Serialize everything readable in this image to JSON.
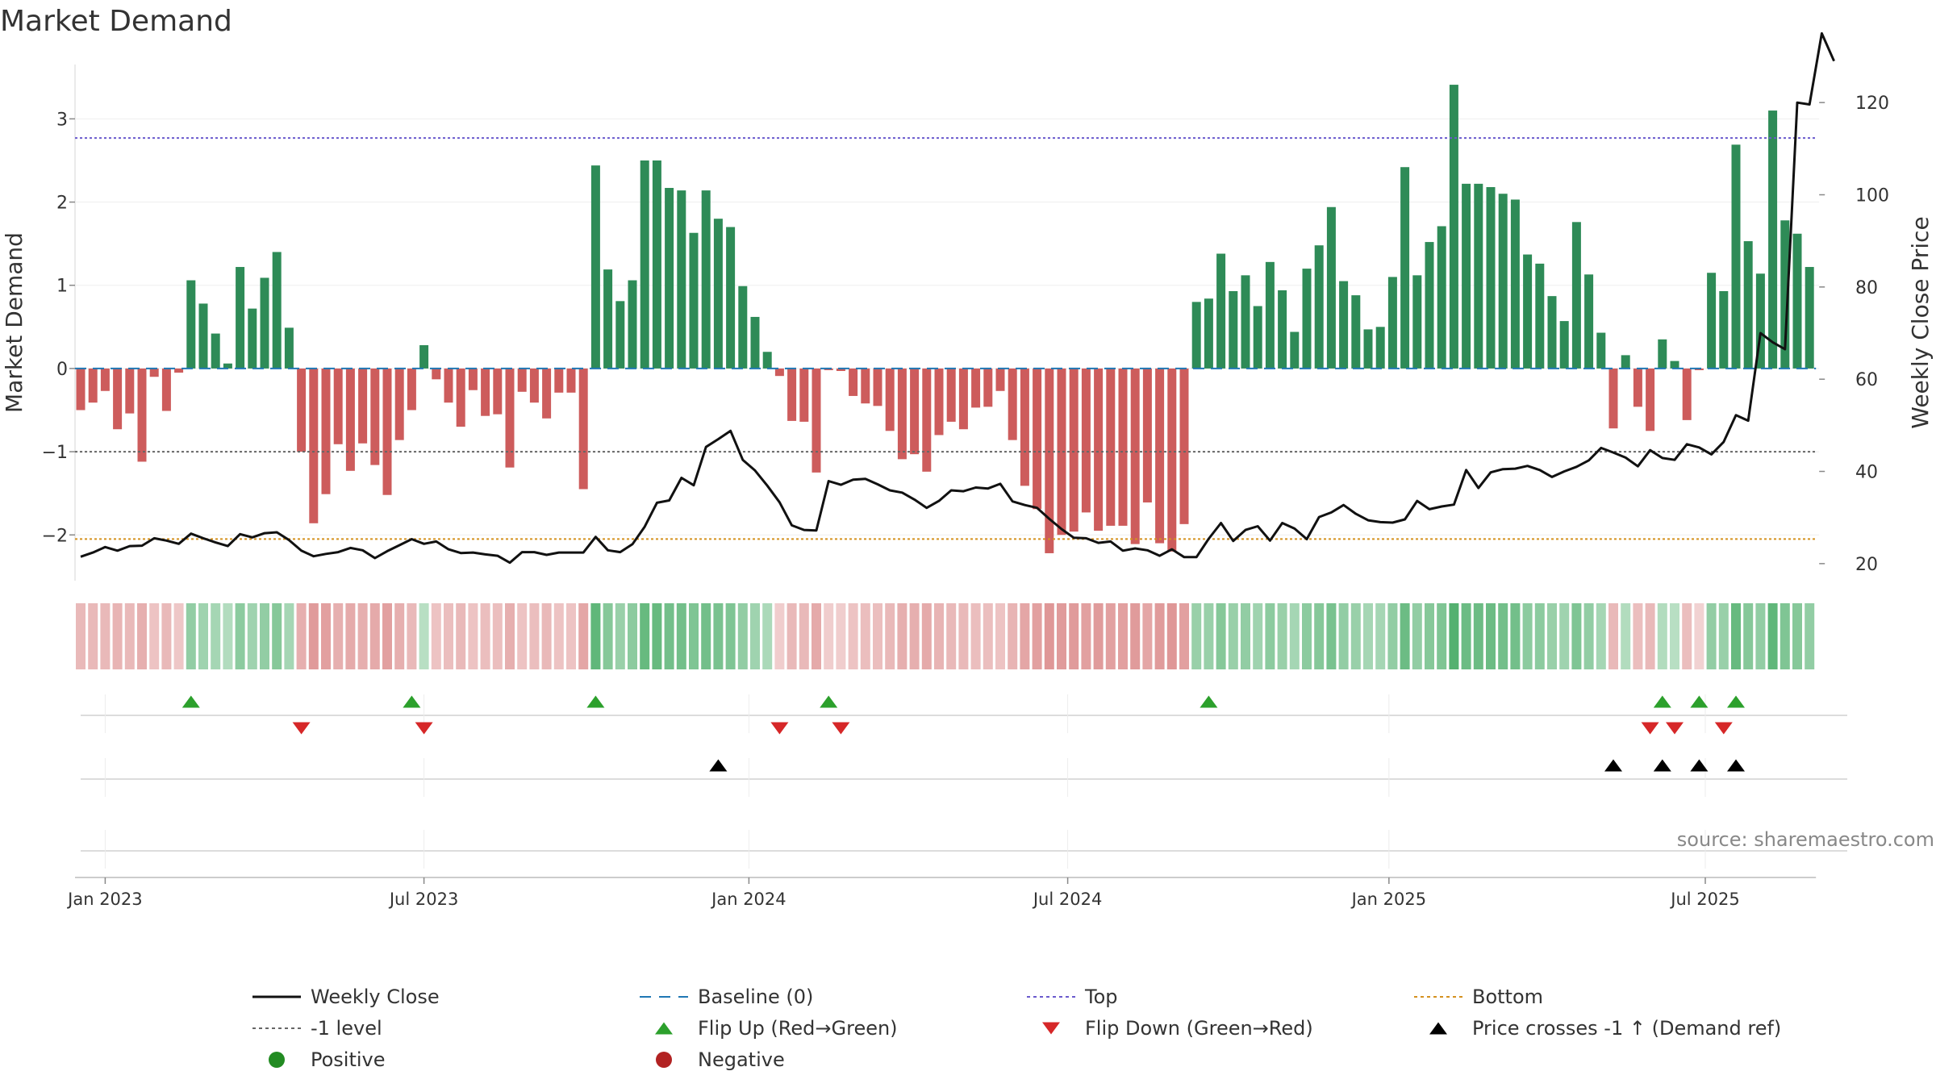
{
  "chart_data": {
    "type": "bar",
    "title": "Market Demand",
    "ylabel": "Market Demand",
    "y2label": "Weekly Close Price",
    "source": "source: sharemaestro.com",
    "ylim": [
      -2.55,
      3.75
    ],
    "y2lim": [
      16.3,
      130.0
    ],
    "yticks": [
      -2,
      -1,
      0,
      1,
      2,
      3
    ],
    "y2ticks": [
      20,
      40,
      60,
      80,
      100,
      120
    ],
    "x_ticks": [
      {
        "label": "Jan 2023",
        "week": 2
      },
      {
        "label": "Jul 2023",
        "week": 28
      },
      {
        "label": "Jan 2024",
        "week": 54.5
      },
      {
        "label": "Jul 2024",
        "week": 80.5
      },
      {
        "label": "Jan 2025",
        "week": 106.7
      },
      {
        "label": "Jul 2025",
        "week": 132.5
      }
    ],
    "levels": {
      "top": 2.77,
      "minus1": -1.0,
      "bottom": -2.05,
      "baseline": 0
    },
    "demand": [
      -0.5,
      -0.41,
      -0.27,
      -0.73,
      -0.54,
      -1.12,
      -0.1,
      -0.51,
      -0.05,
      1.06,
      0.78,
      0.42,
      0.06,
      1.22,
      0.72,
      1.09,
      1.4,
      0.49,
      -1.0,
      -1.86,
      -1.51,
      -0.91,
      -1.23,
      -0.9,
      -1.16,
      -1.52,
      -0.86,
      -0.5,
      0.28,
      -0.13,
      -0.41,
      -0.7,
      -0.26,
      -0.57,
      -0.55,
      -1.19,
      -0.28,
      -0.41,
      -0.6,
      -0.29,
      -0.29,
      -1.45,
      2.44,
      1.19,
      0.81,
      1.06,
      2.5,
      2.5,
      2.17,
      2.14,
      1.63,
      2.14,
      1.8,
      1.7,
      0.99,
      0.62,
      0.2,
      -0.09,
      -0.63,
      -0.64,
      -1.25,
      -0.02,
      -0.03,
      -0.33,
      -0.42,
      -0.45,
      -0.75,
      -1.09,
      -1.03,
      -1.24,
      -0.8,
      -0.64,
      -0.73,
      -0.47,
      -0.46,
      -0.27,
      -0.86,
      -1.41,
      -1.69,
      -2.22,
      -2.0,
      -1.96,
      -1.73,
      -1.95,
      -1.89,
      -1.89,
      -2.11,
      -1.61,
      -2.1,
      -2.2,
      -1.87,
      0.8,
      0.84,
      1.38,
      0.93,
      1.12,
      0.75,
      1.28,
      0.94,
      0.44,
      1.2,
      1.48,
      1.94,
      1.05,
      0.88,
      0.47,
      0.5,
      1.1,
      2.42,
      1.12,
      1.52,
      1.71,
      3.41,
      2.22,
      2.22,
      2.18,
      2.1,
      2.03,
      1.37,
      1.26,
      0.87,
      0.57,
      1.76,
      1.13,
      0.43,
      -0.72,
      0.16,
      -0.46,
      -0.75,
      0.35,
      0.09,
      -0.62,
      -0.02,
      1.15,
      0.93,
      2.69,
      1.53,
      1.14,
      3.1,
      1.78,
      1.62,
      1.22
    ],
    "close": [
      21.5,
      22.4,
      23.6,
      22.8,
      23.8,
      23.9,
      25.5,
      25.0,
      24.3,
      26.5,
      25.5,
      24.6,
      23.8,
      26.4,
      25.7,
      26.6,
      26.8,
      25.1,
      22.8,
      21.6,
      22.1,
      22.5,
      23.4,
      22.9,
      21.2,
      22.7,
      24.0,
      25.3,
      24.3,
      24.8,
      23.1,
      22.3,
      22.4,
      22.0,
      21.7,
      20.2,
      22.5,
      22.5,
      21.9,
      22.4,
      22.4,
      22.4,
      25.8,
      22.9,
      22.5,
      24.2,
      28.0,
      33.2,
      33.7,
      38.6,
      37.0,
      45.3,
      47.0,
      48.8,
      42.5,
      40.2,
      36.9,
      33.3,
      28.3,
      27.3,
      27.2,
      37.9,
      37.1,
      38.2,
      38.4,
      37.2,
      35.9,
      35.4,
      33.9,
      32.1,
      33.6,
      35.9,
      35.7,
      36.5,
      36.3,
      37.3,
      33.5,
      32.7,
      32.1,
      29.7,
      27.5,
      25.6,
      25.5,
      24.5,
      24.8,
      22.8,
      23.3,
      22.9,
      21.7,
      23.1,
      21.4,
      21.4,
      25.4,
      28.8,
      24.9,
      27.3,
      28.1,
      25.0,
      28.8,
      27.6,
      25.3,
      30.1,
      31.1,
      32.7,
      30.8,
      29.4,
      29.0,
      28.9,
      29.6,
      33.6,
      31.8,
      32.4,
      32.8,
      40.3,
      36.4,
      39.8,
      40.5,
      40.6,
      41.2,
      40.3,
      38.8,
      40.0,
      41.0,
      42.4,
      45.1,
      44.1,
      43.0,
      41.1,
      44.6,
      42.9,
      42.5,
      45.9,
      45.2,
      43.7,
      46.4,
      52.2,
      51.0,
      70.0,
      68.0,
      66.5,
      120.0,
      119.6,
      135.0,
      129.0
    ],
    "heat_intensity": [
      0.35,
      0.35,
      0.35,
      0.4,
      0.35,
      0.45,
      0.25,
      0.35,
      0.2,
      0.5,
      0.4,
      0.35,
      0.25,
      0.55,
      0.4,
      0.5,
      0.6,
      0.35,
      0.45,
      0.65,
      0.6,
      0.45,
      0.5,
      0.45,
      0.5,
      0.6,
      0.45,
      0.35,
      0.2,
      0.25,
      0.3,
      0.35,
      0.25,
      0.3,
      0.3,
      0.45,
      0.25,
      0.3,
      0.35,
      0.25,
      0.25,
      0.55,
      0.9,
      0.6,
      0.45,
      0.55,
      0.85,
      0.85,
      0.75,
      0.75,
      0.65,
      0.75,
      0.7,
      0.65,
      0.5,
      0.4,
      0.3,
      0.15,
      0.35,
      0.35,
      0.5,
      0.15,
      0.15,
      0.25,
      0.3,
      0.3,
      0.35,
      0.45,
      0.45,
      0.5,
      0.4,
      0.35,
      0.35,
      0.3,
      0.3,
      0.25,
      0.4,
      0.55,
      0.6,
      0.7,
      0.65,
      0.65,
      0.6,
      0.65,
      0.6,
      0.6,
      0.65,
      0.55,
      0.65,
      0.7,
      0.6,
      0.45,
      0.45,
      0.6,
      0.45,
      0.5,
      0.4,
      0.55,
      0.45,
      0.35,
      0.55,
      0.6,
      0.7,
      0.5,
      0.45,
      0.35,
      0.35,
      0.5,
      0.8,
      0.5,
      0.6,
      0.65,
      1.0,
      0.8,
      0.8,
      0.8,
      0.75,
      0.75,
      0.55,
      0.55,
      0.45,
      0.4,
      0.65,
      0.5,
      0.35,
      0.35,
      0.25,
      0.3,
      0.35,
      0.25,
      0.2,
      0.3,
      0.1,
      0.5,
      0.45,
      0.85,
      0.6,
      0.5,
      0.9,
      0.65,
      0.6,
      0.5
    ],
    "markers": {
      "flip_up": [
        9,
        27,
        42,
        61,
        92,
        129,
        132,
        135
      ],
      "flip_down": [
        18,
        28,
        57,
        62,
        128,
        130,
        134
      ],
      "price_cross": [
        52,
        125,
        129,
        132,
        135
      ]
    },
    "legend": [
      {
        "label": "Weekly Close",
        "style": "line-black"
      },
      {
        "label": "Baseline (0)",
        "style": "dash-blue"
      },
      {
        "label": "Top",
        "style": "dot-purple"
      },
      {
        "label": "Bottom",
        "style": "dot-orange"
      },
      {
        "label": "-1 level",
        "style": "dot-gray"
      },
      {
        "label": "Flip Up (Red→Green)",
        "style": "tri-up-green"
      },
      {
        "label": "Flip Down (Green→Red)",
        "style": "tri-down-red"
      },
      {
        "label": "Price crosses -1 ↑ (Demand ref)",
        "style": "tri-up-black"
      },
      {
        "label": "Positive",
        "style": "dot-green"
      },
      {
        "label": "Negative",
        "style": "dot-red"
      }
    ],
    "colors": {
      "positive": "#2e8b57",
      "negative": "#cd5c5c",
      "close": "#111111",
      "top": "#6a5acd",
      "bottom": "#d4911f",
      "minus1": "#666666",
      "baseline": "#1f77b4",
      "flip_up": "#2ca02c",
      "flip_down": "#d62728",
      "cross": "#000000",
      "legend_positive": "#228b22",
      "legend_negative": "#b22222"
    }
  }
}
